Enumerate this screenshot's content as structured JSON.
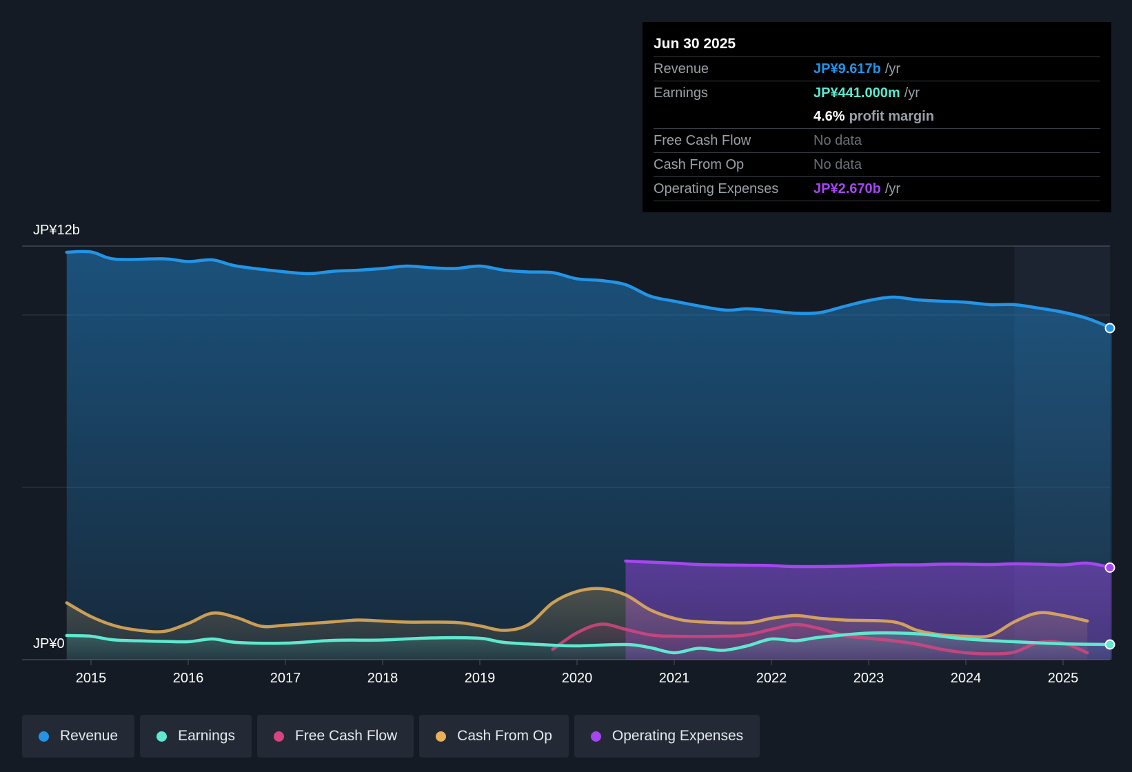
{
  "tooltip": {
    "date": "Jun 30 2025",
    "rows": {
      "revenue": {
        "label": "Revenue",
        "value": "JP¥9.617b",
        "unit": "/yr"
      },
      "earnings": {
        "label": "Earnings",
        "value": "JP¥441.000m",
        "unit": "/yr"
      },
      "margin": {
        "value": "4.6%",
        "unit": "profit margin"
      },
      "fcf": {
        "label": "Free Cash Flow",
        "value": "No data"
      },
      "cfo": {
        "label": "Cash From Op",
        "value": "No data"
      },
      "opex": {
        "label": "Operating Expenses",
        "value": "JP¥2.670b",
        "unit": "/yr"
      }
    }
  },
  "legend": [
    {
      "label": "Revenue",
      "color": "#2394e6"
    },
    {
      "label": "Earnings",
      "color": "#5ee8cf"
    },
    {
      "label": "Free Cash Flow",
      "color": "#d6457f"
    },
    {
      "label": "Cash From Op",
      "color": "#e8b05b"
    },
    {
      "label": "Operating Expenses",
      "color": "#a646f0"
    }
  ],
  "colors": {
    "revenue": "#2394e6",
    "earnings": "#5ee8cf",
    "fcf": "#d6457f",
    "cfo": "#e8b05b",
    "opex": "#a646f0",
    "background": "#151b24"
  },
  "chart_data": {
    "type": "area",
    "y_label_top": "JP¥12b",
    "y_label_bottom": "JP¥0",
    "ylim": [
      0,
      12
    ],
    "unit": "JP¥ billions",
    "x_ticks": [
      "2015",
      "2016",
      "2017",
      "2018",
      "2019",
      "2020",
      "2021",
      "2022",
      "2023",
      "2024",
      "2025"
    ],
    "x_range": [
      2014.6,
      2025.5
    ],
    "forecast_shading_start": 2024.5,
    "series": [
      {
        "name": "Revenue",
        "color": "#2394e6",
        "points": [
          [
            2014.75,
            11.82
          ],
          [
            2015.0,
            11.83
          ],
          [
            2015.25,
            11.62
          ],
          [
            2015.75,
            11.63
          ],
          [
            2016.0,
            11.55
          ],
          [
            2016.25,
            11.6
          ],
          [
            2016.5,
            11.42
          ],
          [
            2017.0,
            11.25
          ],
          [
            2017.25,
            11.2
          ],
          [
            2017.5,
            11.27
          ],
          [
            2017.75,
            11.3
          ],
          [
            2018.0,
            11.35
          ],
          [
            2018.25,
            11.42
          ],
          [
            2018.5,
            11.37
          ],
          [
            2018.75,
            11.35
          ],
          [
            2019.0,
            11.42
          ],
          [
            2019.25,
            11.3
          ],
          [
            2019.5,
            11.25
          ],
          [
            2019.75,
            11.23
          ],
          [
            2020.0,
            11.05
          ],
          [
            2020.25,
            11.0
          ],
          [
            2020.5,
            10.88
          ],
          [
            2020.75,
            10.55
          ],
          [
            2021.0,
            10.4
          ],
          [
            2021.5,
            10.15
          ],
          [
            2021.75,
            10.18
          ],
          [
            2022.0,
            10.12
          ],
          [
            2022.25,
            10.05
          ],
          [
            2022.5,
            10.07
          ],
          [
            2022.75,
            10.25
          ],
          [
            2023.0,
            10.42
          ],
          [
            2023.25,
            10.52
          ],
          [
            2023.5,
            10.44
          ],
          [
            2023.75,
            10.4
          ],
          [
            2024.0,
            10.37
          ],
          [
            2024.25,
            10.3
          ],
          [
            2024.5,
            10.3
          ],
          [
            2024.75,
            10.2
          ],
          [
            2025.0,
            10.08
          ],
          [
            2025.25,
            9.9
          ],
          [
            2025.5,
            9.62
          ]
        ]
      },
      {
        "name": "Earnings",
        "color": "#5ee8cf",
        "points": [
          [
            2014.75,
            0.7
          ],
          [
            2015.0,
            0.68
          ],
          [
            2015.25,
            0.57
          ],
          [
            2015.75,
            0.53
          ],
          [
            2016.0,
            0.52
          ],
          [
            2016.25,
            0.6
          ],
          [
            2016.5,
            0.5
          ],
          [
            2017.0,
            0.48
          ],
          [
            2017.5,
            0.56
          ],
          [
            2018.0,
            0.57
          ],
          [
            2018.5,
            0.63
          ],
          [
            2019.0,
            0.62
          ],
          [
            2019.25,
            0.5
          ],
          [
            2019.75,
            0.42
          ],
          [
            2020.0,
            0.4
          ],
          [
            2020.5,
            0.44
          ],
          [
            2020.75,
            0.35
          ],
          [
            2021.0,
            0.2
          ],
          [
            2021.25,
            0.33
          ],
          [
            2021.5,
            0.27
          ],
          [
            2021.75,
            0.4
          ],
          [
            2022.0,
            0.6
          ],
          [
            2022.25,
            0.55
          ],
          [
            2022.5,
            0.65
          ],
          [
            2023.0,
            0.77
          ],
          [
            2023.5,
            0.75
          ],
          [
            2024.0,
            0.6
          ],
          [
            2024.5,
            0.52
          ],
          [
            2025.0,
            0.46
          ],
          [
            2025.5,
            0.44
          ]
        ]
      },
      {
        "name": "Free Cash Flow",
        "color": "#d6457f",
        "points": [
          [
            2019.75,
            0.3
          ],
          [
            2020.0,
            0.78
          ],
          [
            2020.25,
            1.03
          ],
          [
            2020.5,
            0.88
          ],
          [
            2020.75,
            0.72
          ],
          [
            2021.0,
            0.68
          ],
          [
            2021.5,
            0.68
          ],
          [
            2021.75,
            0.72
          ],
          [
            2022.0,
            0.88
          ],
          [
            2022.25,
            1.02
          ],
          [
            2022.5,
            0.9
          ],
          [
            2022.75,
            0.7
          ],
          [
            2023.0,
            0.62
          ],
          [
            2023.25,
            0.55
          ],
          [
            2023.5,
            0.45
          ],
          [
            2023.75,
            0.3
          ],
          [
            2024.0,
            0.2
          ],
          [
            2024.25,
            0.17
          ],
          [
            2024.5,
            0.22
          ],
          [
            2024.75,
            0.5
          ],
          [
            2025.0,
            0.48
          ],
          [
            2025.25,
            0.2
          ]
        ]
      },
      {
        "name": "Cash From Op",
        "color": "#e8b05b",
        "points": [
          [
            2014.75,
            1.65
          ],
          [
            2015.0,
            1.25
          ],
          [
            2015.25,
            0.98
          ],
          [
            2015.5,
            0.85
          ],
          [
            2015.75,
            0.82
          ],
          [
            2016.0,
            1.05
          ],
          [
            2016.25,
            1.35
          ],
          [
            2016.5,
            1.22
          ],
          [
            2016.75,
            0.97
          ],
          [
            2017.0,
            1.0
          ],
          [
            2017.5,
            1.1
          ],
          [
            2017.75,
            1.15
          ],
          [
            2018.0,
            1.12
          ],
          [
            2018.25,
            1.09
          ],
          [
            2018.75,
            1.08
          ],
          [
            2019.0,
            0.98
          ],
          [
            2019.25,
            0.85
          ],
          [
            2019.5,
            1.02
          ],
          [
            2019.75,
            1.65
          ],
          [
            2020.0,
            1.98
          ],
          [
            2020.25,
            2.06
          ],
          [
            2020.5,
            1.88
          ],
          [
            2020.75,
            1.45
          ],
          [
            2021.0,
            1.2
          ],
          [
            2021.25,
            1.1
          ],
          [
            2021.75,
            1.07
          ],
          [
            2022.0,
            1.2
          ],
          [
            2022.25,
            1.28
          ],
          [
            2022.5,
            1.2
          ],
          [
            2022.75,
            1.15
          ],
          [
            2023.25,
            1.1
          ],
          [
            2023.5,
            0.85
          ],
          [
            2023.75,
            0.72
          ],
          [
            2024.0,
            0.68
          ],
          [
            2024.25,
            0.7
          ],
          [
            2024.5,
            1.1
          ],
          [
            2024.75,
            1.36
          ],
          [
            2025.0,
            1.28
          ],
          [
            2025.25,
            1.12
          ]
        ]
      },
      {
        "name": "Operating Expenses",
        "color": "#a646f0",
        "points": [
          [
            2020.5,
            2.86
          ],
          [
            2021.0,
            2.8
          ],
          [
            2021.25,
            2.76
          ],
          [
            2021.75,
            2.74
          ],
          [
            2022.0,
            2.73
          ],
          [
            2022.25,
            2.7
          ],
          [
            2022.75,
            2.71
          ],
          [
            2023.0,
            2.73
          ],
          [
            2023.25,
            2.75
          ],
          [
            2023.5,
            2.75
          ],
          [
            2023.75,
            2.77
          ],
          [
            2024.0,
            2.77
          ],
          [
            2024.25,
            2.76
          ],
          [
            2024.5,
            2.78
          ],
          [
            2024.75,
            2.77
          ],
          [
            2025.0,
            2.75
          ],
          [
            2025.25,
            2.8
          ],
          [
            2025.5,
            2.67
          ]
        ]
      }
    ]
  }
}
